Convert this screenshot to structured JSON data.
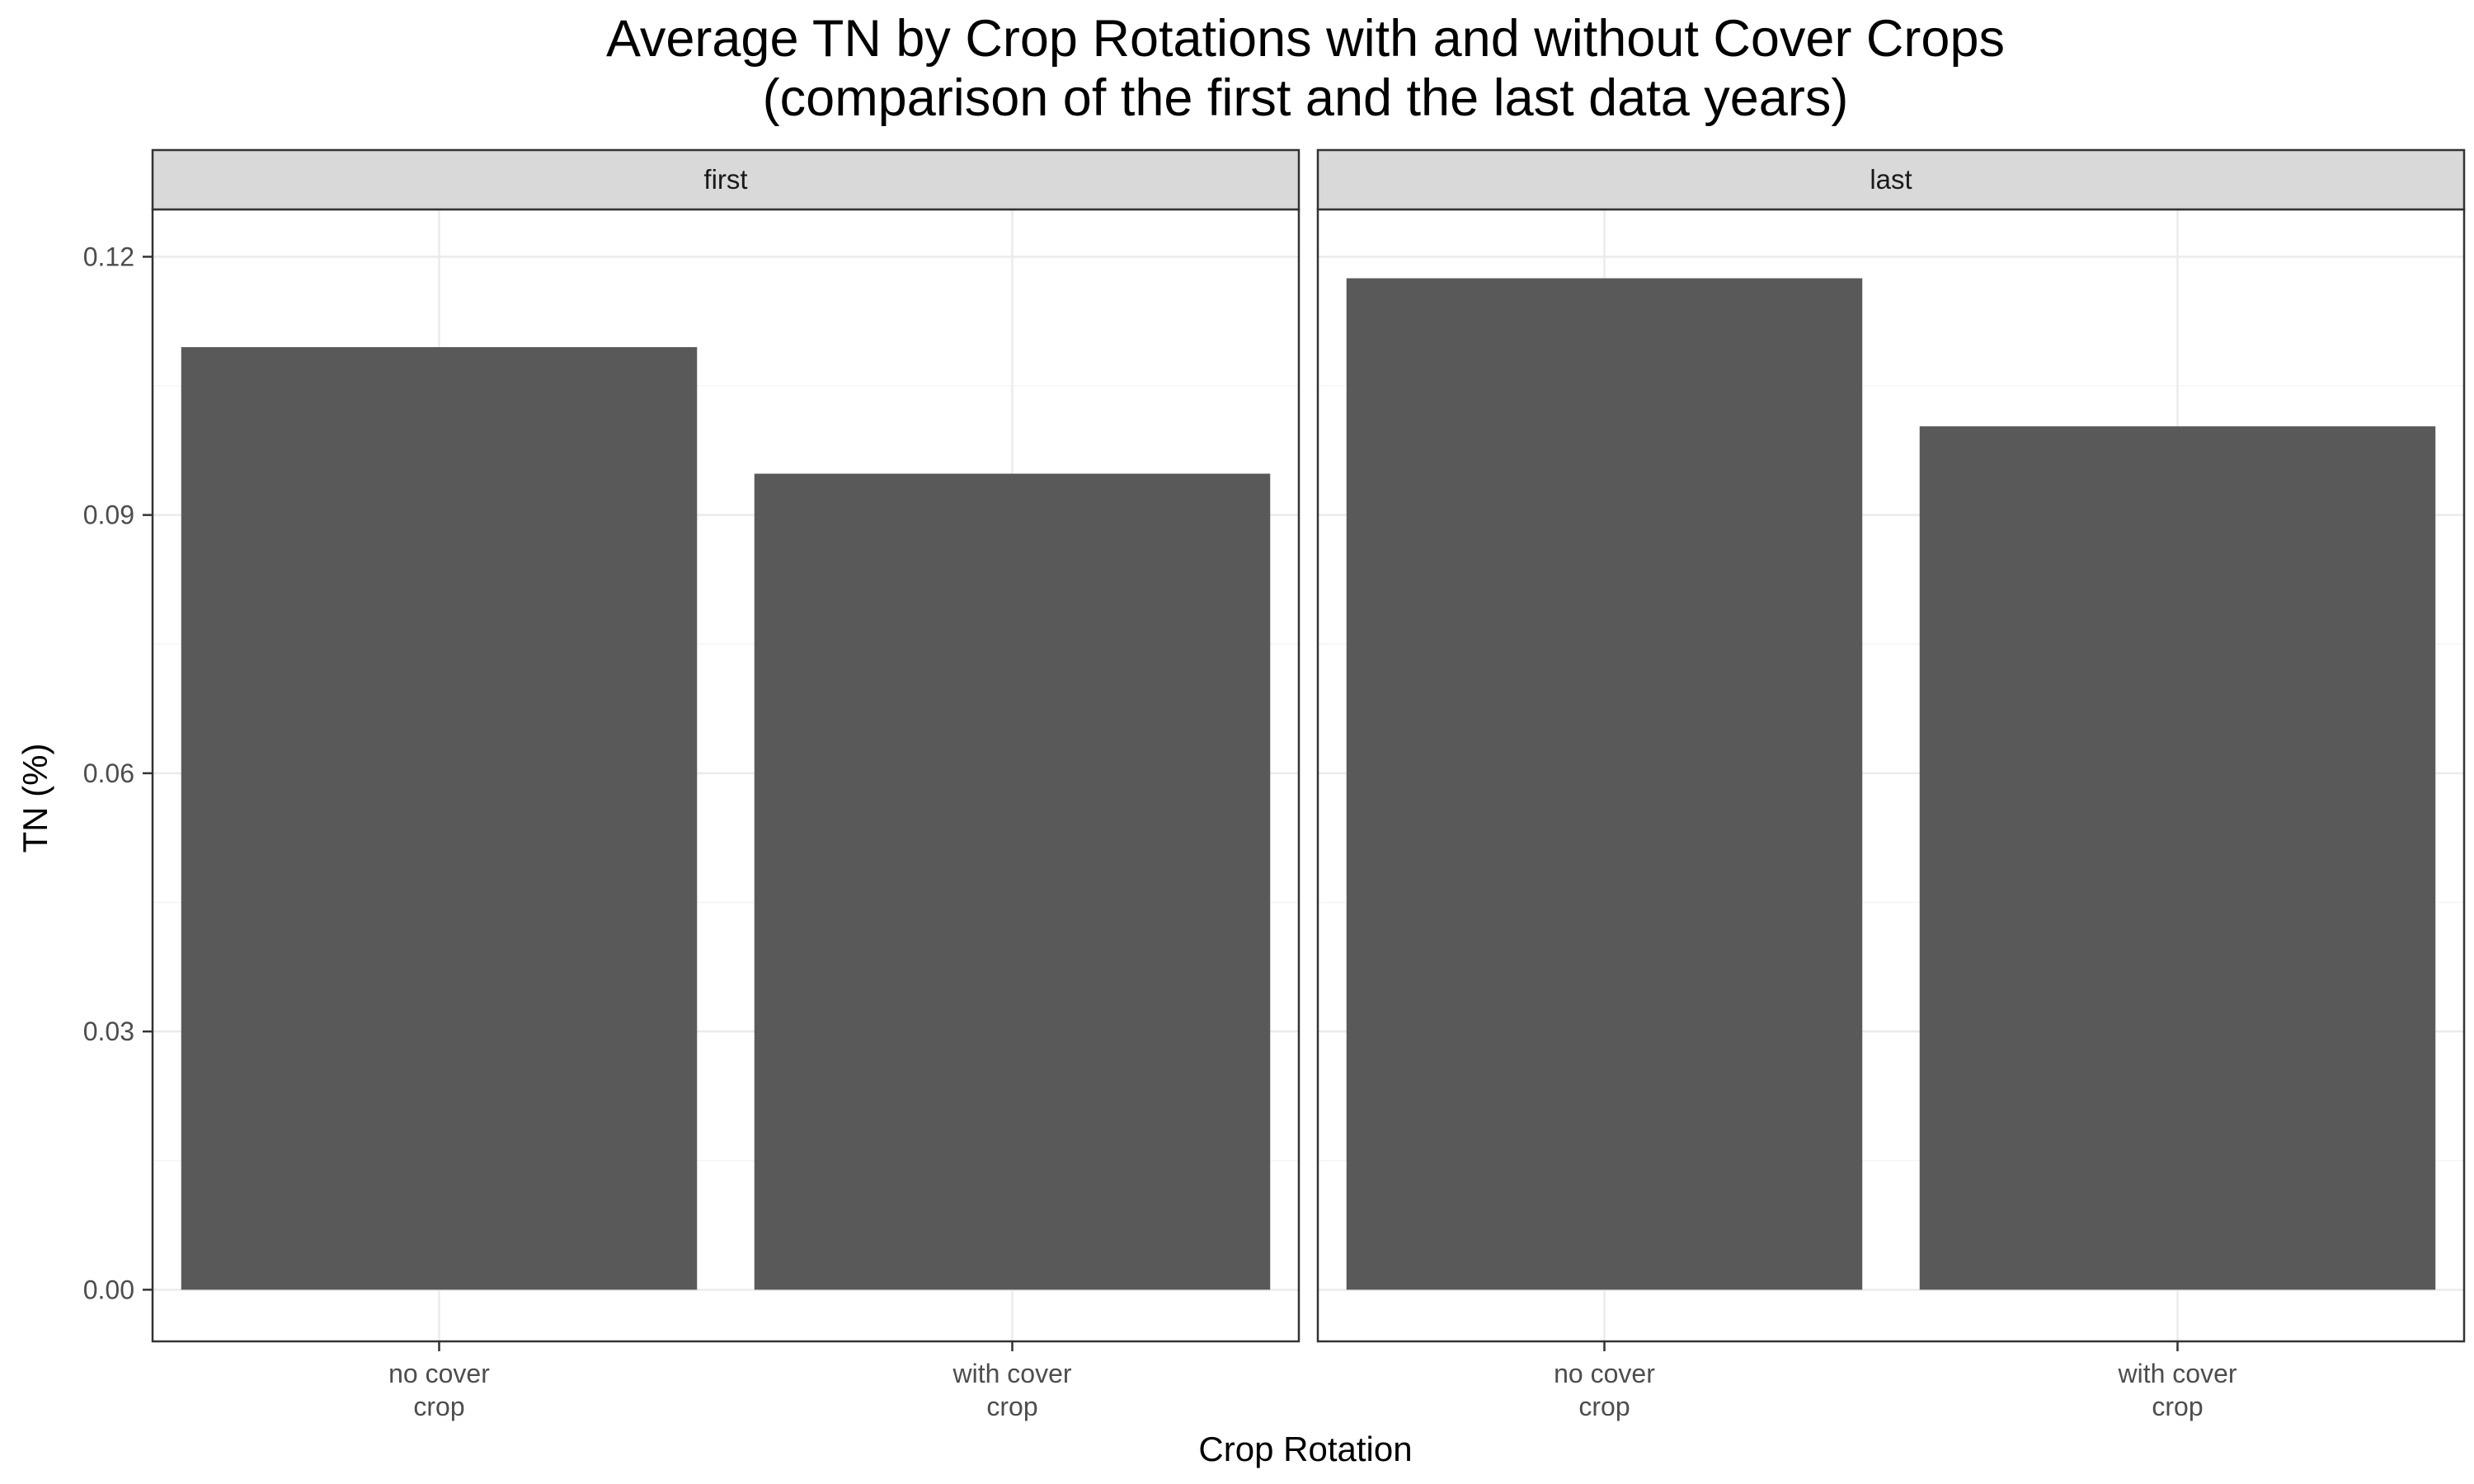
{
  "chart_data": {
    "type": "bar",
    "title": "Average TN by Crop Rotations with and without Cover Crops",
    "subtitle": "(comparison of the first and the last data years)",
    "xlabel": "Crop Rotation",
    "ylabel": "TN (%)",
    "categories": [
      [
        "no cover",
        "crop"
      ],
      [
        "with cover",
        "crop"
      ]
    ],
    "ylim": [
      -0.006,
      0.1255
    ],
    "yticks": [
      0,
      0.03,
      0.06,
      0.09,
      0.12
    ],
    "ytick_labels": [
      "0.00",
      "0.03",
      "0.06",
      "0.09",
      "0.12"
    ],
    "grid": true,
    "facets": [
      {
        "name": "first",
        "values": [
          0.1095,
          0.0948
        ]
      },
      {
        "name": "last",
        "values": [
          0.1175,
          0.1003
        ]
      }
    ],
    "colors": {
      "bar": "#595959",
      "grid_major": "#ebebeb",
      "grid_minor": "#f5f5f5",
      "strip_fill": "#d9d9d9",
      "panel_border": "#333333",
      "tick_label": "#4d4d4d"
    }
  }
}
